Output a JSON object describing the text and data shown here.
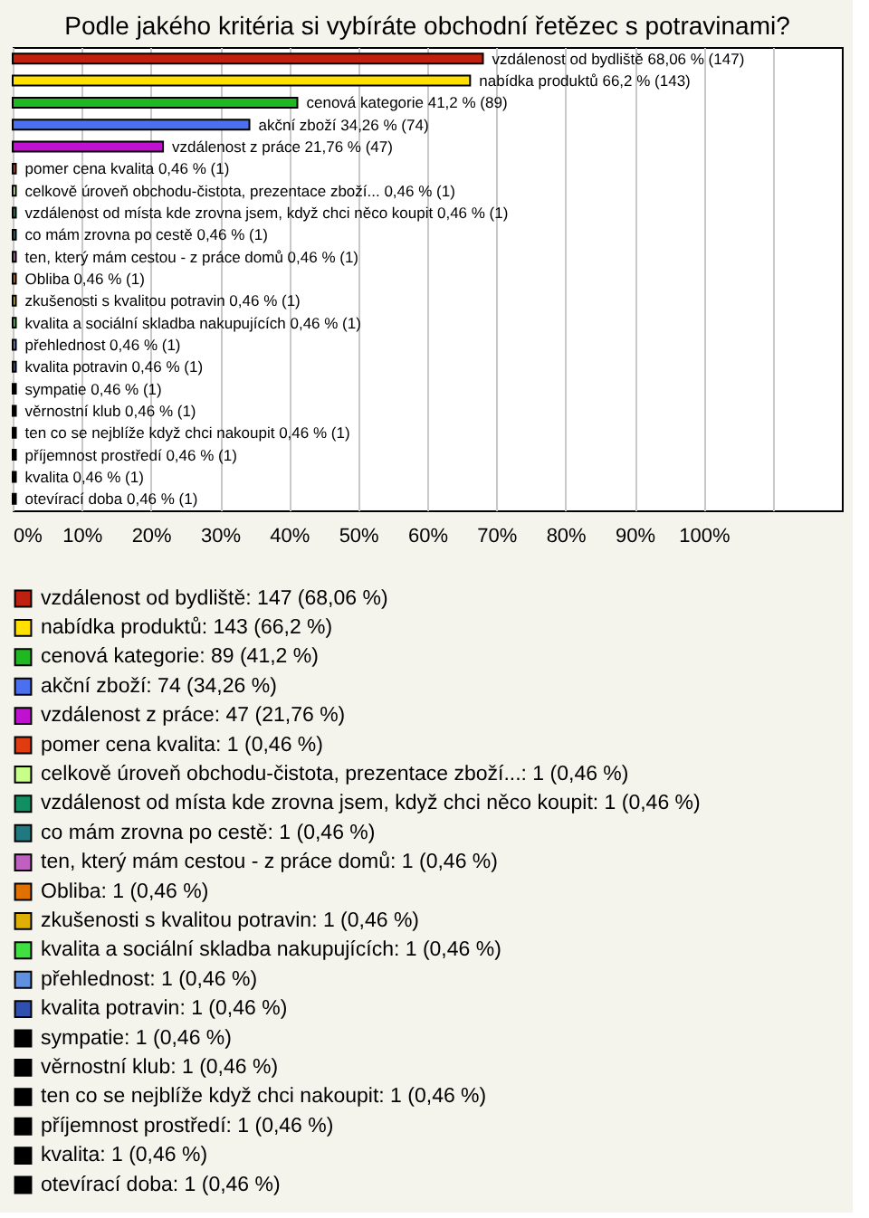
{
  "chart_data": {
    "type": "bar",
    "orientation": "horizontal",
    "title": "Podle jakého kritéria si vybíráte obchodní řetězec s potravinami?",
    "categories": [
      null,
      null,
      null,
      null,
      null,
      null,
      null,
      null,
      null,
      null,
      null,
      null,
      null,
      null,
      null,
      null,
      null,
      null,
      null,
      null,
      null
    ],
    "series": [
      {
        "name": "vzdálenost od bydliště: 147 (68,06 %)",
        "color": "#c0200f",
        "values": [
          68.06,
          null,
          null,
          null,
          null,
          null,
          null,
          null,
          null,
          null,
          null,
          null,
          null,
          null,
          null,
          null,
          null,
          null,
          null,
          null,
          null
        ],
        "value_labels": [
          "vzdálenost od bydliště 68,06 % (147)",
          null,
          null,
          null,
          null,
          null,
          null,
          null,
          null,
          null,
          null,
          null,
          null,
          null,
          null,
          null,
          null,
          null,
          null,
          null,
          null
        ]
      },
      {
        "name": "nabídka produktů: 143 (66,2 %)",
        "color": "#ffe000",
        "values": [
          null,
          66.2,
          null,
          null,
          null,
          null,
          null,
          null,
          null,
          null,
          null,
          null,
          null,
          null,
          null,
          null,
          null,
          null,
          null,
          null,
          null
        ],
        "value_labels": [
          null,
          "nabídka produktů 66,2 % (143)",
          null,
          null,
          null,
          null,
          null,
          null,
          null,
          null,
          null,
          null,
          null,
          null,
          null,
          null,
          null,
          null,
          null,
          null,
          null
        ]
      },
      {
        "name": "cenová kategorie: 89 (41,2 %)",
        "color": "#20b820",
        "values": [
          null,
          null,
          41.2,
          null,
          null,
          null,
          null,
          null,
          null,
          null,
          null,
          null,
          null,
          null,
          null,
          null,
          null,
          null,
          null,
          null,
          null
        ],
        "value_labels": [
          null,
          null,
          "cenová kategorie 41,2 % (89)",
          null,
          null,
          null,
          null,
          null,
          null,
          null,
          null,
          null,
          null,
          null,
          null,
          null,
          null,
          null,
          null,
          null,
          null
        ]
      },
      {
        "name": "akční zboží: 74 (34,26 %)",
        "color": "#4a6ff0",
        "values": [
          null,
          null,
          null,
          34.26,
          null,
          null,
          null,
          null,
          null,
          null,
          null,
          null,
          null,
          null,
          null,
          null,
          null,
          null,
          null,
          null,
          null
        ],
        "value_labels": [
          null,
          null,
          null,
          "akční zboží 34,26 % (74)",
          null,
          null,
          null,
          null,
          null,
          null,
          null,
          null,
          null,
          null,
          null,
          null,
          null,
          null,
          null,
          null,
          null
        ]
      },
      {
        "name": "vzdálenost z práce: 47 (21,76 %)",
        "color": "#c010d0",
        "values": [
          null,
          null,
          null,
          null,
          21.76,
          null,
          null,
          null,
          null,
          null,
          null,
          null,
          null,
          null,
          null,
          null,
          null,
          null,
          null,
          null,
          null
        ],
        "value_labels": [
          null,
          null,
          null,
          null,
          "vzdálenost z práce 21,76 % (47)",
          null,
          null,
          null,
          null,
          null,
          null,
          null,
          null,
          null,
          null,
          null,
          null,
          null,
          null,
          null,
          null
        ]
      },
      {
        "name": "pomer cena kvalita: 1 (0,46 %)",
        "color": "#e03c10",
        "values": [
          null,
          null,
          null,
          null,
          null,
          0.46,
          null,
          null,
          null,
          null,
          null,
          null,
          null,
          null,
          null,
          null,
          null,
          null,
          null,
          null,
          null
        ],
        "value_labels": [
          null,
          null,
          null,
          null,
          null,
          "pomer cena kvalita 0,46 % (1)",
          null,
          null,
          null,
          null,
          null,
          null,
          null,
          null,
          null,
          null,
          null,
          null,
          null,
          null,
          null
        ]
      },
      {
        "name": "celkově úroveň obchodu-čistota, prezentace zboží...: 1 (0,46 %)",
        "color": "#c8ff88",
        "values": [
          null,
          null,
          null,
          null,
          null,
          null,
          0.46,
          null,
          null,
          null,
          null,
          null,
          null,
          null,
          null,
          null,
          null,
          null,
          null,
          null,
          null
        ],
        "value_labels": [
          null,
          null,
          null,
          null,
          null,
          null,
          "celkově úroveň obchodu-čistota, prezentace zboží... 0,46 % (1)",
          null,
          null,
          null,
          null,
          null,
          null,
          null,
          null,
          null,
          null,
          null,
          null,
          null,
          null
        ]
      },
      {
        "name": "vzdálenost od místa kde zrovna jsem, když chci něco koupit: 1 (0,46 %)",
        "color": "#109060",
        "values": [
          null,
          null,
          null,
          null,
          null,
          null,
          null,
          0.46,
          null,
          null,
          null,
          null,
          null,
          null,
          null,
          null,
          null,
          null,
          null,
          null,
          null
        ],
        "value_labels": [
          null,
          null,
          null,
          null,
          null,
          null,
          null,
          "vzdálenost od místa kde zrovna jsem, když chci něco koupit 0,46 % (1)",
          null,
          null,
          null,
          null,
          null,
          null,
          null,
          null,
          null,
          null,
          null,
          null,
          null
        ]
      },
      {
        "name": "co mám zrovna po cestě: 1 (0,46 %)",
        "color": "#207880",
        "values": [
          null,
          null,
          null,
          null,
          null,
          null,
          null,
          null,
          0.46,
          null,
          null,
          null,
          null,
          null,
          null,
          null,
          null,
          null,
          null,
          null,
          null
        ],
        "value_labels": [
          null,
          null,
          null,
          null,
          null,
          null,
          null,
          null,
          "co mám zrovna po cestě 0,46 % (1)",
          null,
          null,
          null,
          null,
          null,
          null,
          null,
          null,
          null,
          null,
          null,
          null
        ]
      },
      {
        "name": "ten, který mám cestou - z práce domů: 1 (0,46 %)",
        "color": "#c060c0",
        "values": [
          null,
          null,
          null,
          null,
          null,
          null,
          null,
          null,
          null,
          0.46,
          null,
          null,
          null,
          null,
          null,
          null,
          null,
          null,
          null,
          null,
          null
        ],
        "value_labels": [
          null,
          null,
          null,
          null,
          null,
          null,
          null,
          null,
          null,
          "ten, který mám cestou - z práce domů 0,46 % (1)",
          null,
          null,
          null,
          null,
          null,
          null,
          null,
          null,
          null,
          null,
          null
        ]
      },
      {
        "name": "Obliba: 1 (0,46 %)",
        "color": "#e07000",
        "values": [
          null,
          null,
          null,
          null,
          null,
          null,
          null,
          null,
          null,
          null,
          0.46,
          null,
          null,
          null,
          null,
          null,
          null,
          null,
          null,
          null,
          null
        ],
        "value_labels": [
          null,
          null,
          null,
          null,
          null,
          null,
          null,
          null,
          null,
          null,
          "Obliba 0,46 % (1)",
          null,
          null,
          null,
          null,
          null,
          null,
          null,
          null,
          null,
          null
        ]
      },
      {
        "name": "zkušenosti s kvalitou potravin: 1 (0,46 %)",
        "color": "#e0b000",
        "values": [
          null,
          null,
          null,
          null,
          null,
          null,
          null,
          null,
          null,
          null,
          null,
          0.46,
          null,
          null,
          null,
          null,
          null,
          null,
          null,
          null,
          null
        ],
        "value_labels": [
          null,
          null,
          null,
          null,
          null,
          null,
          null,
          null,
          null,
          null,
          null,
          "zkušenosti s kvalitou potravin 0,46 % (1)",
          null,
          null,
          null,
          null,
          null,
          null,
          null,
          null,
          null
        ]
      },
      {
        "name": "kvalita a sociální skladba nakupujících: 1 (0,46 %)",
        "color": "#40e040",
        "values": [
          null,
          null,
          null,
          null,
          null,
          null,
          null,
          null,
          null,
          null,
          null,
          null,
          0.46,
          null,
          null,
          null,
          null,
          null,
          null,
          null,
          null
        ],
        "value_labels": [
          null,
          null,
          null,
          null,
          null,
          null,
          null,
          null,
          null,
          null,
          null,
          null,
          "kvalita a sociální skladba nakupujících 0,46 % (1)",
          null,
          null,
          null,
          null,
          null,
          null,
          null,
          null
        ]
      },
      {
        "name": "přehlednost: 1 (0,46 %)",
        "color": "#6090e0",
        "values": [
          null,
          null,
          null,
          null,
          null,
          null,
          null,
          null,
          null,
          null,
          null,
          null,
          null,
          0.46,
          null,
          null,
          null,
          null,
          null,
          null,
          null
        ],
        "value_labels": [
          null,
          null,
          null,
          null,
          null,
          null,
          null,
          null,
          null,
          null,
          null,
          null,
          null,
          "přehlednost 0,46 % (1)",
          null,
          null,
          null,
          null,
          null,
          null,
          null
        ]
      },
      {
        "name": "kvalita potravin: 1 (0,46 %)",
        "color": "#3050b0",
        "values": [
          null,
          null,
          null,
          null,
          null,
          null,
          null,
          null,
          null,
          null,
          null,
          null,
          null,
          null,
          0.46,
          null,
          null,
          null,
          null,
          null,
          null
        ],
        "value_labels": [
          null,
          null,
          null,
          null,
          null,
          null,
          null,
          null,
          null,
          null,
          null,
          null,
          null,
          null,
          "kvalita potravin 0,46 % (1)",
          null,
          null,
          null,
          null,
          null,
          null
        ]
      },
      {
        "name": "sympatie: 1 (0,46 %)",
        "color": "#000000",
        "values": [
          null,
          null,
          null,
          null,
          null,
          null,
          null,
          null,
          null,
          null,
          null,
          null,
          null,
          null,
          null,
          0.46,
          null,
          null,
          null,
          null,
          null
        ],
        "value_labels": [
          null,
          null,
          null,
          null,
          null,
          null,
          null,
          null,
          null,
          null,
          null,
          null,
          null,
          null,
          null,
          "sympatie 0,46 % (1)",
          null,
          null,
          null,
          null,
          null
        ]
      },
      {
        "name": "věrnostní klub: 1 (0,46 %)",
        "color": "#000000",
        "values": [
          null,
          null,
          null,
          null,
          null,
          null,
          null,
          null,
          null,
          null,
          null,
          null,
          null,
          null,
          null,
          null,
          0.46,
          null,
          null,
          null,
          null
        ],
        "value_labels": [
          null,
          null,
          null,
          null,
          null,
          null,
          null,
          null,
          null,
          null,
          null,
          null,
          null,
          null,
          null,
          null,
          "věrnostní klub 0,46 % (1)",
          null,
          null,
          null,
          null
        ]
      },
      {
        "name": "ten co se nejblíže když chci nakoupit: 1 (0,46 %)",
        "color": "#000000",
        "values": [
          null,
          null,
          null,
          null,
          null,
          null,
          null,
          null,
          null,
          null,
          null,
          null,
          null,
          null,
          null,
          null,
          null,
          0.46,
          null,
          null,
          null
        ],
        "value_labels": [
          null,
          null,
          null,
          null,
          null,
          null,
          null,
          null,
          null,
          null,
          null,
          null,
          null,
          null,
          null,
          null,
          null,
          "ten co se nejblíže když chci nakoupit 0,46 % (1)",
          null,
          null,
          null
        ]
      },
      {
        "name": "příjemnost prostředí: 1 (0,46 %)",
        "color": "#000000",
        "values": [
          null,
          null,
          null,
          null,
          null,
          null,
          null,
          null,
          null,
          null,
          null,
          null,
          null,
          null,
          null,
          null,
          null,
          null,
          0.46,
          null,
          null
        ],
        "value_labels": [
          null,
          null,
          null,
          null,
          null,
          null,
          null,
          null,
          null,
          null,
          null,
          null,
          null,
          null,
          null,
          null,
          null,
          null,
          "příjemnost prostředí 0,46 % (1)",
          null,
          null
        ]
      },
      {
        "name": "kvalita: 1 (0,46 %)",
        "color": "#000000",
        "values": [
          null,
          null,
          null,
          null,
          null,
          null,
          null,
          null,
          null,
          null,
          null,
          null,
          null,
          null,
          null,
          null,
          null,
          null,
          null,
          0.46,
          null
        ],
        "value_labels": [
          null,
          null,
          null,
          null,
          null,
          null,
          null,
          null,
          null,
          null,
          null,
          null,
          null,
          null,
          null,
          null,
          null,
          null,
          null,
          "kvalita 0,46 % (1)",
          null
        ]
      },
      {
        "name": "otevírací doba: 1 (0,46 %)",
        "color": "#000000",
        "values": [
          null,
          null,
          null,
          null,
          null,
          null,
          null,
          null,
          null,
          null,
          null,
          null,
          null,
          null,
          null,
          null,
          null,
          null,
          null,
          null,
          0.46
        ],
        "value_labels": [
          null,
          null,
          null,
          null,
          null,
          null,
          null,
          null,
          null,
          null,
          null,
          null,
          null,
          null,
          null,
          null,
          null,
          null,
          null,
          null,
          "otevírací doba 0,46 % (1)"
        ]
      }
    ],
    "xlim": [
      0,
      120
    ],
    "xticks": [
      {
        "value": 0,
        "label": "0%"
      },
      {
        "value": 10,
        "label": "10%"
      },
      {
        "value": 20,
        "label": "20%"
      },
      {
        "value": 30,
        "label": "30%"
      },
      {
        "value": 40,
        "label": "40%"
      },
      {
        "value": 50,
        "label": "50%"
      },
      {
        "value": 60,
        "label": "60%"
      },
      {
        "value": 70,
        "label": "70%"
      },
      {
        "value": 80,
        "label": "80%"
      },
      {
        "value": 90,
        "label": "90%"
      },
      {
        "value": 100,
        "label": "100%"
      },
      {
        "value": 110,
        "label": null
      }
    ],
    "grid": "x",
    "legend": "bottom"
  }
}
